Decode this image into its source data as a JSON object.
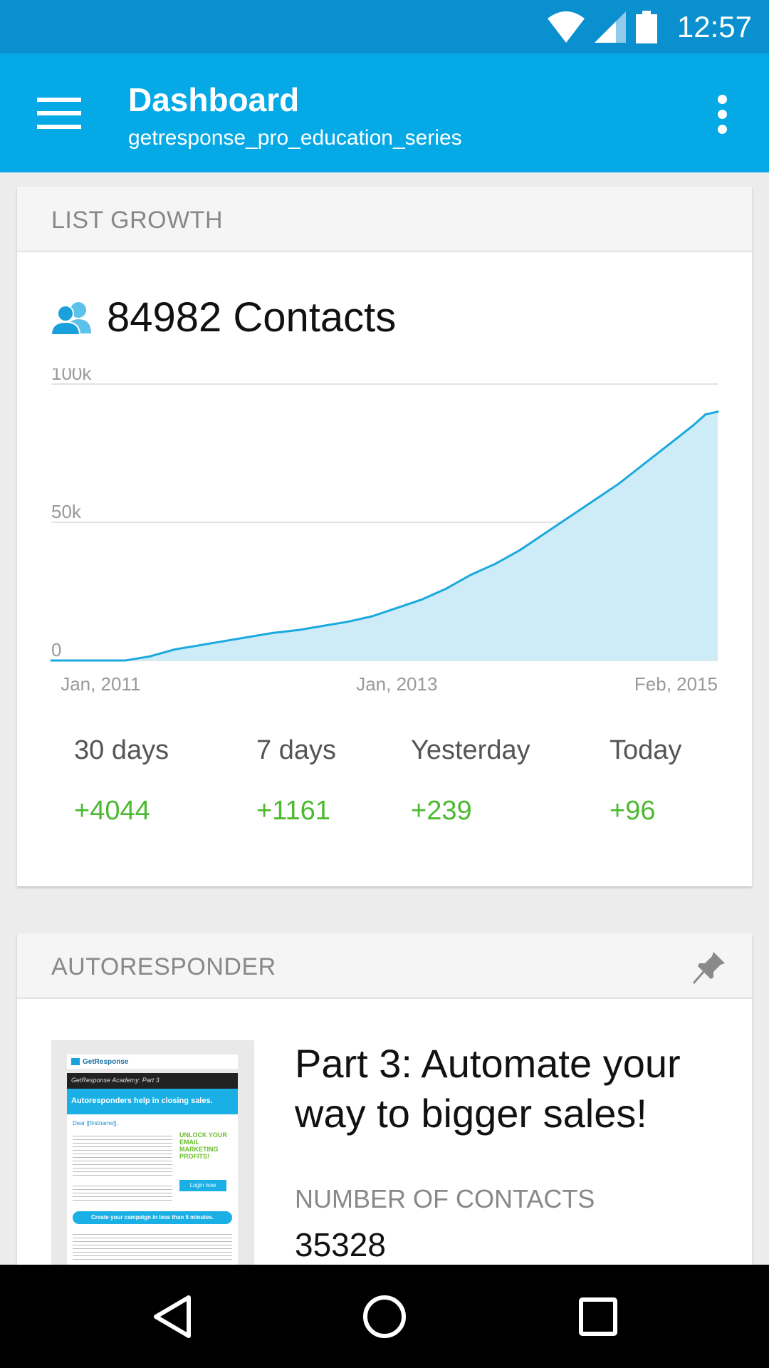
{
  "status_bar": {
    "time": "12:57"
  },
  "app_bar": {
    "title": "Dashboard",
    "subtitle": "getresponse_pro_education_series"
  },
  "list_growth": {
    "header": "LIST GROWTH",
    "contacts_text": "84982 Contacts",
    "stats": [
      {
        "label": "30 days",
        "value": "+4044"
      },
      {
        "label": "7 days",
        "value": "+1161"
      },
      {
        "label": "Yesterday",
        "value": "+239"
      },
      {
        "label": "Today",
        "value": "+96"
      }
    ]
  },
  "chart_data": {
    "type": "area",
    "title": "",
    "xlabel": "",
    "ylabel": "",
    "ylim": [
      0,
      100000
    ],
    "y_ticks": [
      "100k",
      "50k",
      "0"
    ],
    "x_tick_labels": [
      "Jan, 2011",
      "Jan, 2013",
      "Feb, 2015"
    ],
    "x": [
      "2010-09",
      "2011-01",
      "2011-03",
      "2011-05",
      "2011-07",
      "2011-09",
      "2011-11",
      "2012-01",
      "2012-03",
      "2012-05",
      "2012-07",
      "2012-09",
      "2012-11",
      "2013-01",
      "2013-03",
      "2013-05",
      "2013-07",
      "2013-09",
      "2013-11",
      "2014-01",
      "2014-03",
      "2014-05",
      "2014-07",
      "2014-09",
      "2014-11",
      "2015-01",
      "2015-02",
      "2015-03"
    ],
    "series": [
      {
        "values": [
          0,
          0,
          0,
          1500,
          4000,
          5500,
          7000,
          8500,
          10000,
          11000,
          12500,
          14000,
          16000,
          19000,
          22000,
          26000,
          31000,
          35000,
          40000,
          46000,
          52000,
          58000,
          64000,
          71000,
          78000,
          85000,
          89000,
          90000
        ]
      }
    ],
    "colors": {
      "line": "#1aa9de",
      "fill": "#cdecf8",
      "grid": "#e3e3e3"
    }
  },
  "autoresponder": {
    "header": "AUTORESPONDER",
    "title": "Part 3: Automate your way to bigger sales!",
    "contacts_label": "NUMBER OF CONTACTS",
    "contacts_value": "35328",
    "thumbnail": {
      "brand": "GetResponse",
      "banner": "GetResponse Academy: Part 3",
      "headline": "Autoresponders help in closing sales.",
      "greeting": "Dear [[firstname]],",
      "promo": "UNLOCK YOUR EMAIL MARKETING PROFITS!",
      "login": "Login now",
      "cta": "Create your campaign in less than 5 minutes."
    }
  }
}
